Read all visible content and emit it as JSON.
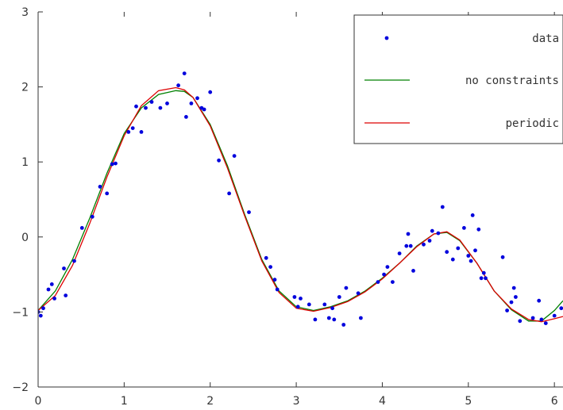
{
  "chart_data": {
    "type": "line",
    "title": "",
    "xlabel": "",
    "ylabel": "",
    "xlim": [
      0,
      6.1
    ],
    "ylim": [
      -2,
      3
    ],
    "xticks": [
      0,
      1,
      2,
      3,
      4,
      5,
      6
    ],
    "yticks": [
      -2,
      -1,
      0,
      1,
      2,
      3
    ],
    "x_tick_labels": [
      "0",
      "1",
      "2",
      "3",
      "4",
      "5",
      "6"
    ],
    "y_tick_labels": [
      "−2",
      "−1",
      "0",
      "1",
      "2",
      "3"
    ],
    "grid": false,
    "legend_position": "top-right",
    "series": [
      {
        "name": "data",
        "kind": "scatter",
        "color": "#0000dd",
        "x": [
          0.0,
          0.03,
          0.06,
          0.12,
          0.16,
          0.19,
          0.3,
          0.32,
          0.42,
          0.51,
          0.63,
          0.72,
          0.8,
          0.86,
          0.9,
          1.05,
          1.1,
          1.14,
          1.2,
          1.25,
          1.32,
          1.42,
          1.5,
          1.63,
          1.7,
          1.72,
          1.78,
          1.85,
          1.9,
          1.93,
          2.0,
          2.1,
          2.22,
          2.28,
          2.45,
          2.65,
          2.7,
          2.75,
          2.78,
          2.98,
          3.02,
          3.05,
          3.15,
          3.22,
          3.33,
          3.38,
          3.42,
          3.44,
          3.5,
          3.55,
          3.58,
          3.72,
          3.75,
          3.95,
          4.02,
          4.06,
          4.12,
          4.2,
          4.28,
          4.3,
          4.33,
          4.36,
          4.48,
          4.55,
          4.58,
          4.65,
          4.7,
          4.75,
          4.82,
          4.88,
          4.95,
          5.0,
          5.03,
          5.05,
          5.08,
          5.12,
          5.15,
          5.18,
          5.2,
          5.4,
          5.45,
          5.5,
          5.53,
          5.55,
          5.6,
          5.75,
          5.82,
          5.85,
          5.9,
          6.0,
          6.08
        ],
        "y": [
          -1.0,
          -1.05,
          -0.95,
          -0.7,
          -0.63,
          -0.82,
          -0.42,
          -0.78,
          -0.32,
          0.12,
          0.27,
          0.67,
          0.58,
          0.97,
          0.98,
          1.4,
          1.45,
          1.74,
          1.4,
          1.72,
          1.8,
          1.72,
          1.78,
          2.02,
          2.18,
          1.6,
          1.78,
          1.85,
          1.72,
          1.7,
          1.93,
          1.02,
          0.58,
          1.08,
          0.33,
          -0.28,
          -0.4,
          -0.57,
          -0.7,
          -0.8,
          -0.93,
          -0.82,
          -0.9,
          -1.1,
          -0.9,
          -1.08,
          -0.95,
          -1.1,
          -0.8,
          -1.17,
          -0.68,
          -0.75,
          -1.08,
          -0.6,
          -0.5,
          -0.4,
          -0.6,
          -0.22,
          -0.12,
          0.04,
          -0.12,
          -0.45,
          -0.1,
          -0.05,
          0.08,
          0.05,
          0.4,
          -0.2,
          -0.3,
          -0.15,
          0.12,
          -0.25,
          -0.32,
          0.29,
          -0.18,
          0.1,
          -0.55,
          -0.48,
          -0.55,
          -0.27,
          -0.98,
          -0.87,
          -0.68,
          -0.8,
          -1.12,
          -1.08,
          -0.85,
          -1.1,
          -1.15,
          -1.05,
          -0.95
        ]
      },
      {
        "name": "no constraints",
        "kind": "line",
        "color": "#008000",
        "x": [
          0.0,
          0.2,
          0.4,
          0.6,
          0.8,
          1.0,
          1.2,
          1.4,
          1.6,
          1.7,
          1.8,
          2.0,
          2.2,
          2.4,
          2.6,
          2.8,
          3.0,
          3.2,
          3.4,
          3.6,
          3.8,
          4.0,
          4.2,
          4.4,
          4.6,
          4.75,
          4.9,
          5.1,
          5.3,
          5.5,
          5.7,
          5.85,
          6.0,
          6.1
        ],
        "y": [
          -0.98,
          -0.72,
          -0.3,
          0.25,
          0.85,
          1.38,
          1.72,
          1.9,
          1.95,
          1.94,
          1.86,
          1.5,
          0.95,
          0.3,
          -0.3,
          -0.72,
          -0.93,
          -0.98,
          -0.93,
          -0.85,
          -0.72,
          -0.55,
          -0.35,
          -0.12,
          0.04,
          0.06,
          -0.05,
          -0.35,
          -0.72,
          -0.97,
          -1.12,
          -1.12,
          -0.98,
          -0.85
        ]
      },
      {
        "name": "periodic",
        "kind": "line",
        "color": "#dd0000",
        "x": [
          0.0,
          0.2,
          0.4,
          0.6,
          0.8,
          1.0,
          1.2,
          1.4,
          1.6,
          1.7,
          1.8,
          2.0,
          2.2,
          2.4,
          2.6,
          2.8,
          3.0,
          3.2,
          3.4,
          3.6,
          3.8,
          4.0,
          4.2,
          4.4,
          4.6,
          4.75,
          4.9,
          5.1,
          5.3,
          5.5,
          5.7,
          5.85,
          6.0,
          6.1
        ],
        "y": [
          -0.98,
          -0.78,
          -0.38,
          0.18,
          0.8,
          1.35,
          1.75,
          1.95,
          1.99,
          1.96,
          1.86,
          1.48,
          0.92,
          0.28,
          -0.32,
          -0.74,
          -0.95,
          -0.99,
          -0.94,
          -0.86,
          -0.73,
          -0.56,
          -0.35,
          -0.13,
          0.04,
          0.07,
          -0.04,
          -0.35,
          -0.72,
          -0.96,
          -1.1,
          -1.13,
          -1.09,
          -1.06
        ]
      }
    ]
  }
}
